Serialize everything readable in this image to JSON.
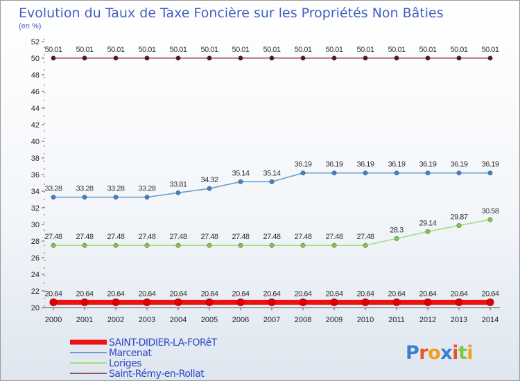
{
  "chart_data": {
    "type": "line",
    "title": "Evolution du Taux de Taxe Foncière sur les Propriétés Non Bâties",
    "ylabel": "(en %)",
    "xlabel": "",
    "categories": [
      "2000",
      "2001",
      "2002",
      "2003",
      "2004",
      "2005",
      "2006",
      "2007",
      "2008",
      "2009",
      "2010",
      "2011",
      "2012",
      "2013",
      "2014"
    ],
    "ylim": [
      20,
      52
    ],
    "yticks": [
      20,
      22,
      24,
      26,
      28,
      30,
      32,
      34,
      36,
      38,
      40,
      42,
      44,
      46,
      48,
      50,
      52
    ],
    "series": [
      {
        "name": "SAINT-DIDIER-LA-FORêT",
        "color": "#ee1111",
        "point_color": "#dd0000",
        "values": [
          20.64,
          20.64,
          20.64,
          20.64,
          20.64,
          20.64,
          20.64,
          20.64,
          20.64,
          20.64,
          20.64,
          20.64,
          20.64,
          20.64,
          20.64
        ],
        "labels": [
          "20.64",
          "20.64",
          "20.64",
          "20.64",
          "20.64",
          "20.64",
          "20.64",
          "20.64",
          "20.64",
          "20.64",
          "20.64",
          "20.64",
          "20.64",
          "20.64",
          "20.64"
        ]
      },
      {
        "name": "Marcenat",
        "color": "#6f9fc9",
        "point_color": "#3d85c6",
        "values": [
          33.28,
          33.28,
          33.28,
          33.28,
          33.81,
          34.32,
          35.14,
          35.14,
          36.19,
          36.19,
          36.19,
          36.19,
          36.19,
          36.19,
          36.19
        ],
        "labels": [
          "33.28",
          "33.28",
          "33.28",
          "33.28",
          "33.81",
          "34.32",
          "35.14",
          "35.14",
          "36.19",
          "36.19",
          "36.19",
          "36.19",
          "36.19",
          "36.19",
          "36.19"
        ]
      },
      {
        "name": "Loriges",
        "color": "#a6dd7e",
        "point_color": "#7fc94a",
        "values": [
          27.48,
          27.48,
          27.48,
          27.48,
          27.48,
          27.48,
          27.48,
          27.48,
          27.48,
          27.48,
          27.48,
          28.3,
          29.14,
          29.87,
          30.58
        ],
        "labels": [
          "27.48",
          "27.48",
          "27.48",
          "27.48",
          "27.48",
          "27.48",
          "27.48",
          "27.48",
          "27.48",
          "27.48",
          "27.48",
          "28.3",
          "29.14",
          "29.87",
          "30.58"
        ]
      },
      {
        "name": "Saint-Rémy-en-Rollat",
        "color": "#8a5555",
        "point_color": "#5a1616",
        "values": [
          50.01,
          50.01,
          50.01,
          50.01,
          50.01,
          50.01,
          50.01,
          50.01,
          50.01,
          50.01,
          50.01,
          50.01,
          50.01,
          50.01,
          50.01
        ],
        "labels": [
          "50.01",
          "50.01",
          "50.01",
          "50.01",
          "50.01",
          "50.01",
          "50.01",
          "50.01",
          "50.01",
          "50.01",
          "50.01",
          "50.01",
          "50.01",
          "50.01",
          "50.01"
        ]
      }
    ],
    "legend": "bottom-left",
    "grid": false
  },
  "watermark": "Proxiti"
}
